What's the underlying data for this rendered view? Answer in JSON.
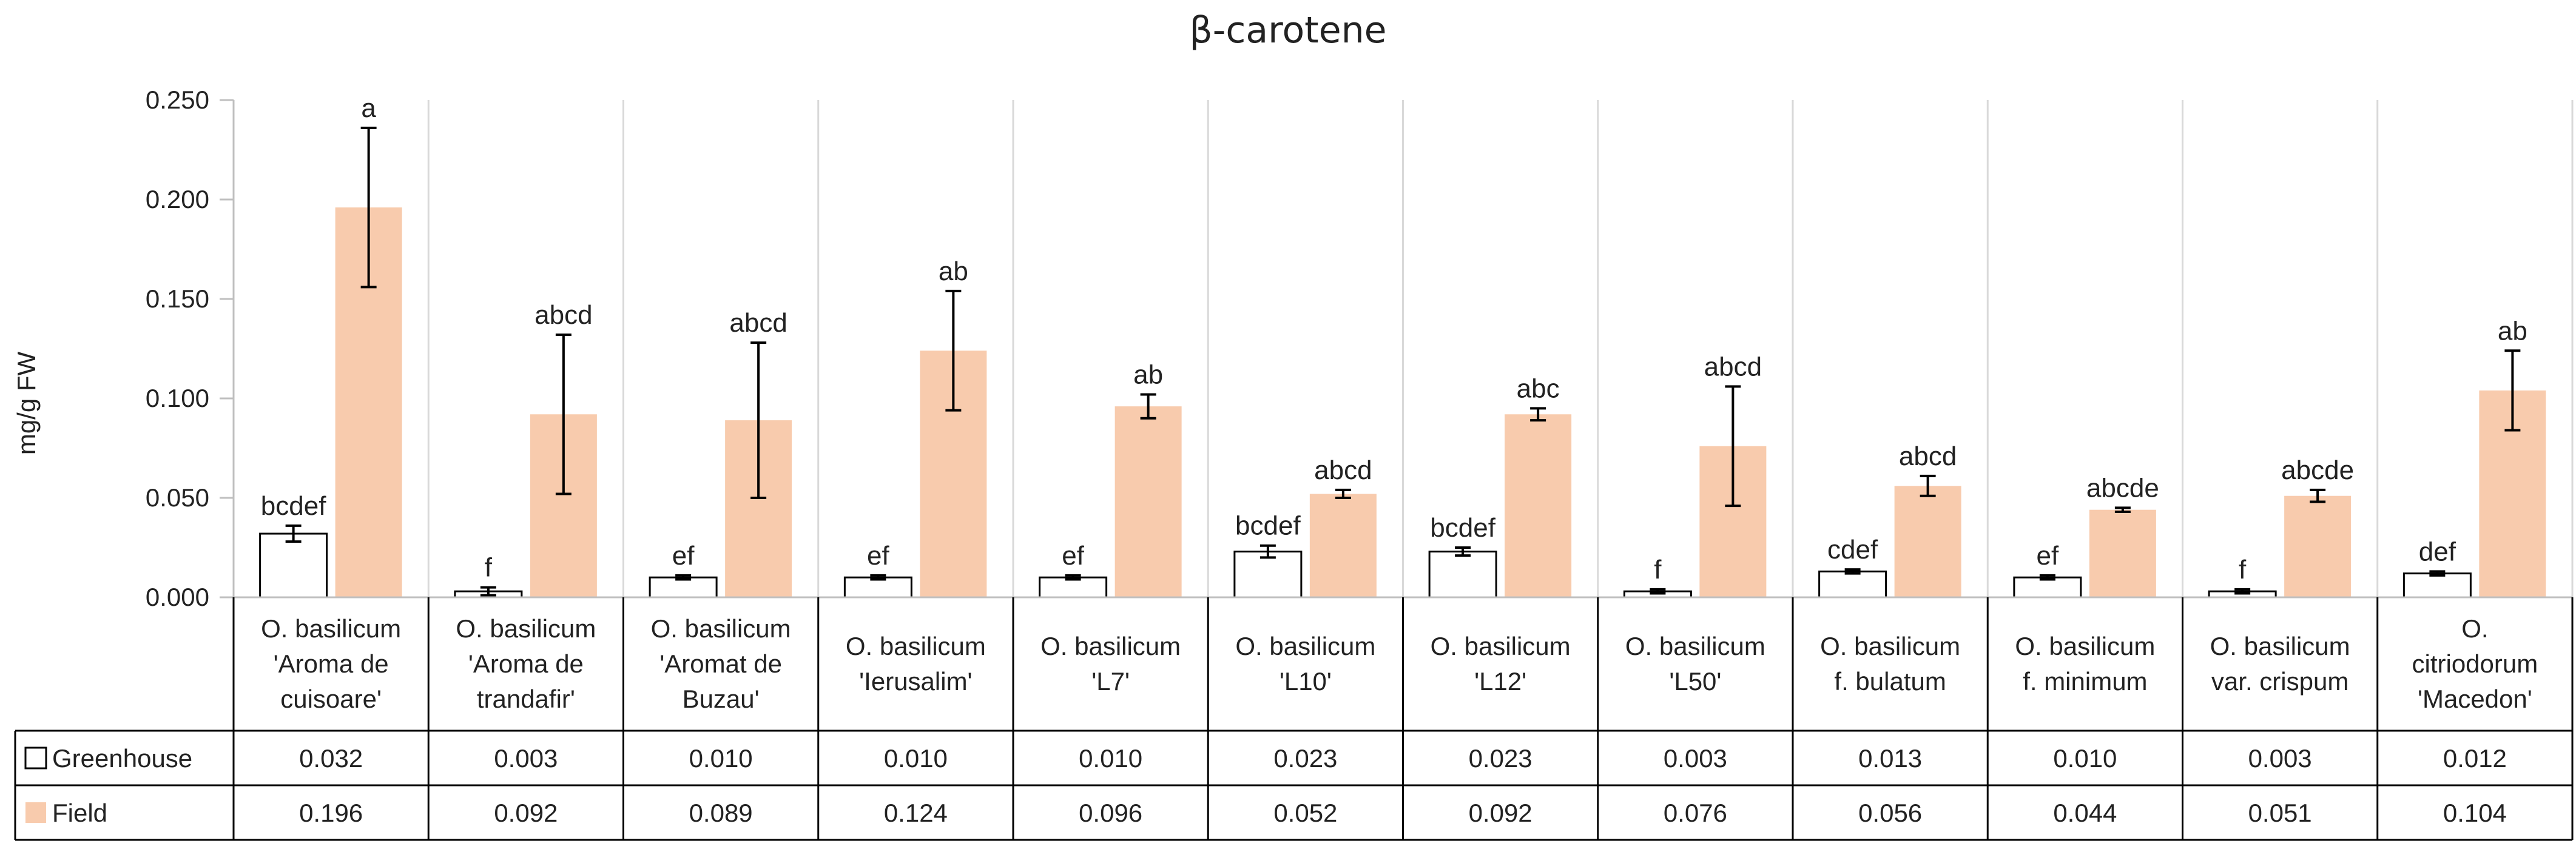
{
  "chart_data": {
    "type": "bar",
    "title": "β-carotene",
    "ylabel": "mg/g FW",
    "xlabel": "",
    "ylim": [
      0,
      0.25
    ],
    "yticks": [
      "0.000",
      "0.050",
      "0.100",
      "0.150",
      "0.200",
      "0.250"
    ],
    "grid": "vertical separators between categories",
    "legend_placement": "data table below chart",
    "categories": [
      "O. basilicum 'Aroma de cuisoare'",
      "O. basilicum 'Aroma de trandafir'",
      "O. basilicum 'Aromat de Buzau'",
      "O. basilicum 'Ierusalim'",
      "O. basilicum 'L7'",
      "O. basilicum 'L10'",
      "O. basilicum 'L12'",
      "O. basilicum 'L50'",
      "O. basilicum f. bulatum",
      "O. basilicum f. minimum",
      "O. basilicum var. crispum",
      "O. citriodorum 'Macedon'"
    ],
    "category_lines": [
      [
        "O. basilicum",
        "'Aroma de",
        "cuisoare'"
      ],
      [
        "O. basilicum",
        "'Aroma de",
        "trandafir'"
      ],
      [
        "O. basilicum",
        "'Aromat de",
        "Buzau'"
      ],
      [
        "O. basilicum",
        "'Ierusalim'"
      ],
      [
        "O. basilicum",
        "'L7'"
      ],
      [
        "O. basilicum",
        "'L10'"
      ],
      [
        "O. basilicum",
        "'L12'"
      ],
      [
        "O. basilicum",
        "'L50'"
      ],
      [
        "O. basilicum",
        "f. bulatum"
      ],
      [
        "O. basilicum",
        "f. minimum"
      ],
      [
        "O. basilicum",
        "var. crispum"
      ],
      [
        "O.",
        "citriodorum",
        "'Macedon'"
      ]
    ],
    "series": [
      {
        "name": "Greenhouse",
        "color": "#ffffff",
        "stroke": "#000000",
        "values": [
          0.032,
          0.003,
          0.01,
          0.01,
          0.01,
          0.023,
          0.023,
          0.003,
          0.013,
          0.01,
          0.003,
          0.012
        ],
        "value_labels": [
          "0.032",
          "0.003",
          "0.010",
          "0.010",
          "0.010",
          "0.023",
          "0.023",
          "0.003",
          "0.013",
          "0.010",
          "0.003",
          "0.012"
        ],
        "errors": [
          0.004,
          0.002,
          0.001,
          0.001,
          0.001,
          0.003,
          0.002,
          0.001,
          0.001,
          0.001,
          0.001,
          0.001
        ],
        "letters": [
          "bcdef",
          "f",
          "ef",
          "ef",
          "ef",
          "bcdef",
          "bcdef",
          "f",
          "cdef",
          "ef",
          "f",
          "def"
        ]
      },
      {
        "name": "Field",
        "color": "#f8cbad",
        "stroke": "none",
        "values": [
          0.196,
          0.092,
          0.089,
          0.124,
          0.096,
          0.052,
          0.092,
          0.076,
          0.056,
          0.044,
          0.051,
          0.104
        ],
        "value_labels": [
          "0.196",
          "0.092",
          "0.089",
          "0.124",
          "0.096",
          "0.052",
          "0.092",
          "0.076",
          "0.056",
          "0.044",
          "0.051",
          "0.104"
        ],
        "errors": [
          0.04,
          0.04,
          0.039,
          0.03,
          0.006,
          0.002,
          0.003,
          0.03,
          0.005,
          0.001,
          0.003,
          0.02
        ],
        "letters": [
          "a",
          "abcd",
          "abcd",
          "ab",
          "ab",
          "abcd",
          "abc",
          "abcd",
          "abcd",
          "abcde",
          "abcde",
          "ab"
        ]
      }
    ]
  }
}
